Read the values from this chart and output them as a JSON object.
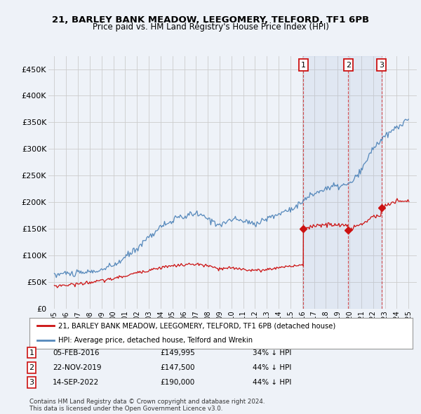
{
  "title1": "21, BARLEY BANK MEADOW, LEEGOMERY, TELFORD, TF1 6PB",
  "title2": "Price paid vs. HM Land Registry's House Price Index (HPI)",
  "ylabel_ticks": [
    "£0",
    "£50K",
    "£100K",
    "£150K",
    "£200K",
    "£250K",
    "£300K",
    "£350K",
    "£400K",
    "£450K"
  ],
  "ylabel_values": [
    0,
    50000,
    100000,
    150000,
    200000,
    250000,
    300000,
    350000,
    400000,
    450000
  ],
  "ylim": [
    0,
    475000
  ],
  "xlim_min": 1994.5,
  "xlim_max": 2025.7,
  "hpi_color": "#5588bb",
  "price_color": "#cc1111",
  "background_color": "#eef2f8",
  "grid_color": "#cccccc",
  "legend_label_red": "21, BARLEY BANK MEADOW, LEEGOMERY, TELFORD, TF1 6PB (detached house)",
  "legend_label_blue": "HPI: Average price, detached house, Telford and Wrekin",
  "transactions": [
    {
      "num": 1,
      "date": "05-FEB-2016",
      "price": "£149,995",
      "hpi": "34% ↓ HPI",
      "year": 2016.1
    },
    {
      "num": 2,
      "date": "22-NOV-2019",
      "price": "£147,500",
      "hpi": "44% ↓ HPI",
      "year": 2019.9
    },
    {
      "num": 3,
      "date": "14-SEP-2022",
      "price": "£190,000",
      "hpi": "44% ↓ HPI",
      "year": 2022.7
    }
  ],
  "footer": "Contains HM Land Registry data © Crown copyright and database right 2024.\nThis data is licensed under the Open Government Licence v3.0.",
  "xtick_years": [
    1995,
    1996,
    1997,
    1998,
    1999,
    2000,
    2001,
    2002,
    2003,
    2004,
    2005,
    2006,
    2007,
    2008,
    2009,
    2010,
    2011,
    2012,
    2013,
    2014,
    2015,
    2016,
    2017,
    2018,
    2019,
    2020,
    2021,
    2022,
    2023,
    2024,
    2025
  ]
}
